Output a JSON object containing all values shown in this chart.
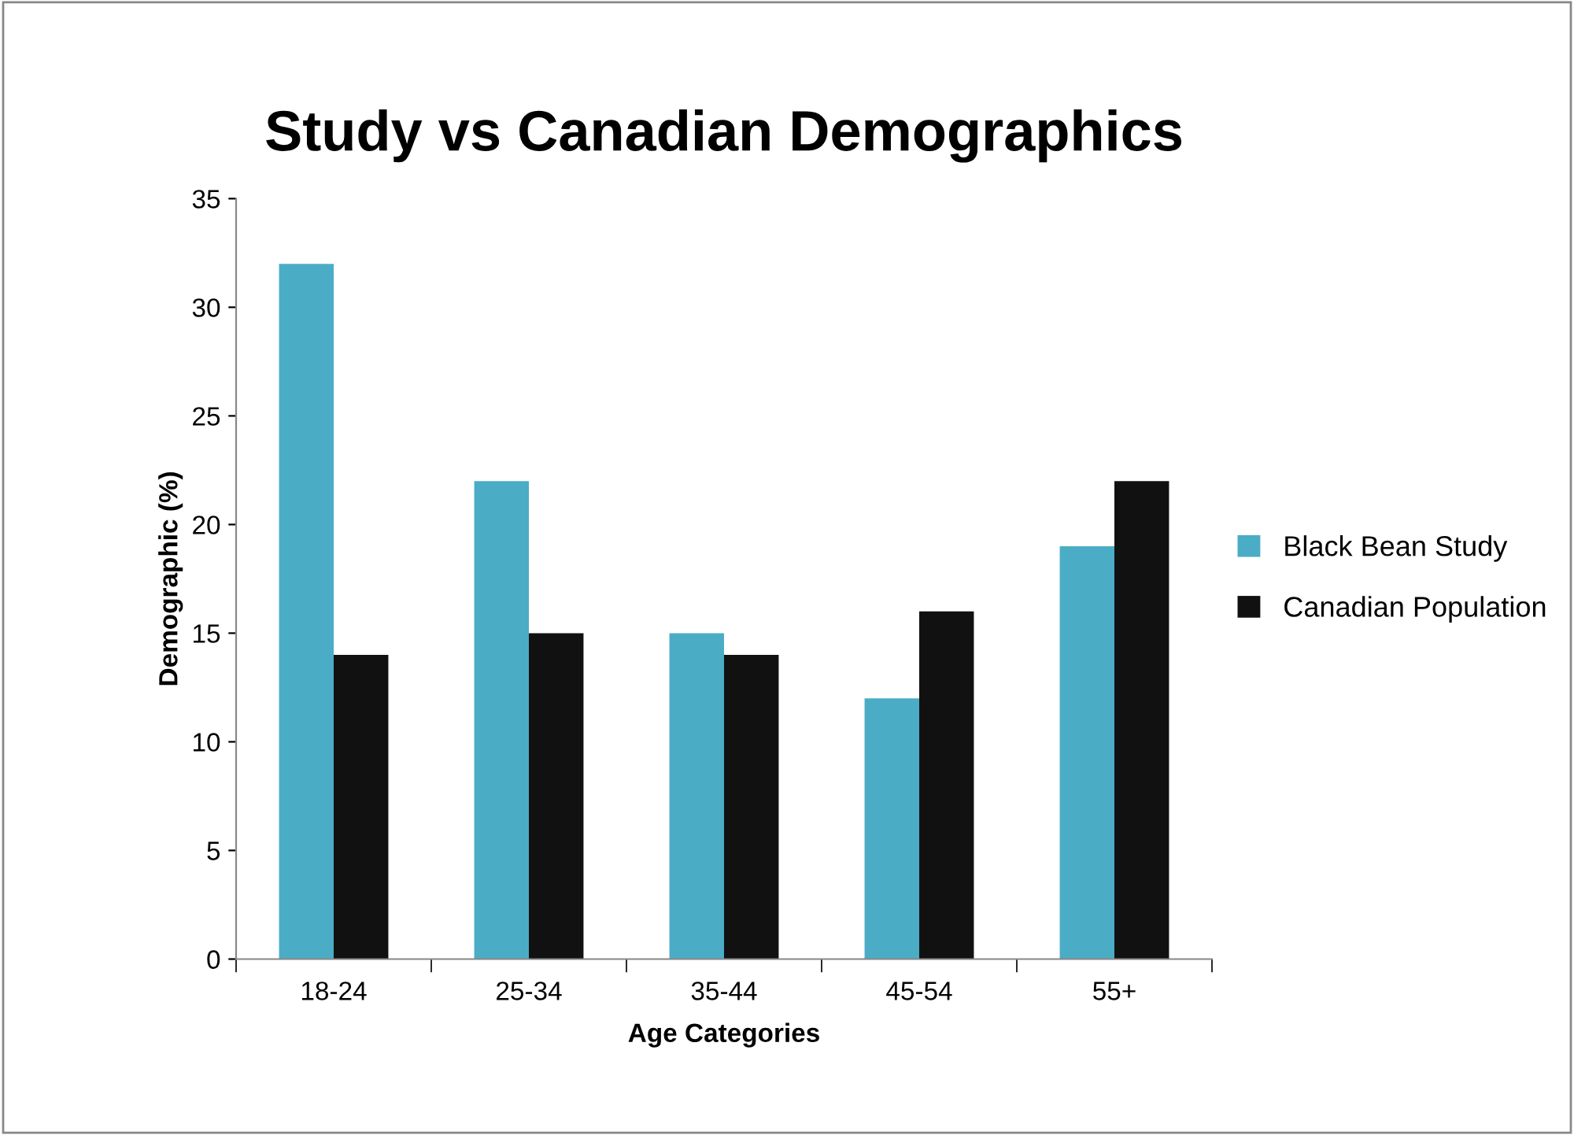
{
  "chart_data": {
    "type": "bar",
    "title": "Study vs Canadian Demographics",
    "xlabel": "Age Categories",
    "ylabel": "Demographic (%)",
    "categories": [
      "18-24",
      "25-34",
      "35-44",
      "45-54",
      "55+"
    ],
    "series": [
      {
        "name": "Black Bean Study",
        "color": "#4bacc6",
        "values": [
          32,
          22,
          15,
          12,
          19
        ]
      },
      {
        "name": "Canadian Population",
        "color": "#111111",
        "values": [
          14,
          15,
          14,
          16,
          22
        ]
      }
    ],
    "ylim": [
      0,
      35
    ],
    "yticks": [
      0,
      5,
      10,
      15,
      20,
      25,
      30,
      35
    ],
    "grid": false,
    "legend": "right"
  }
}
